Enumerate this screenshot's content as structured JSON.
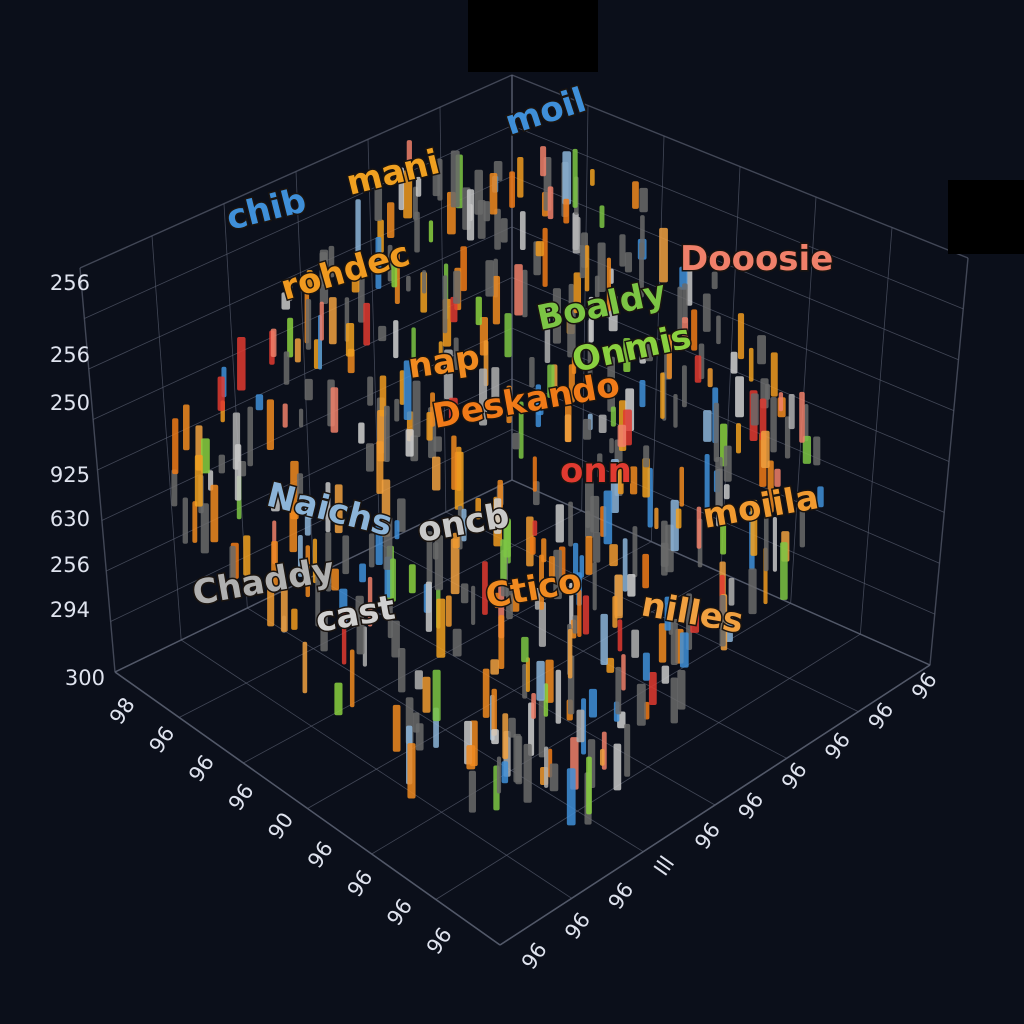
{
  "y_axis_labels": [
    "256",
    "256",
    "250",
    "925",
    "630",
    "256",
    "294",
    "300"
  ],
  "left_axis_labels": [
    "98",
    "96",
    "96",
    "96",
    "90",
    "96",
    "96",
    "96",
    "96"
  ],
  "right_axis_labels": [
    "96",
    "96",
    "96",
    "Ill",
    "96",
    "96",
    "96",
    "96",
    "96",
    "96"
  ],
  "words": [
    {
      "text": "moil",
      "color": "#3f8fd8"
    },
    {
      "text": "mani",
      "color": "#f0a020"
    },
    {
      "text": "chib",
      "color": "#3f8fd8"
    },
    {
      "text": "rohdec",
      "color": "#f09a20"
    },
    {
      "text": "Dooosie",
      "color": "#f0806a"
    },
    {
      "text": "Boaldy",
      "color": "#7cc544"
    },
    {
      "text": "Onmis",
      "color": "#8ad040"
    },
    {
      "text": "nap",
      "color": "#f08a20"
    },
    {
      "text": "Deskando",
      "color": "#f07a18"
    },
    {
      "text": "onn",
      "color": "#e03a30"
    },
    {
      "text": "moiila",
      "color": "#f09a30"
    },
    {
      "text": "oncb",
      "color": "#c8c8c8"
    },
    {
      "text": "Naichs",
      "color": "#8cb4d8"
    },
    {
      "text": "Ctico",
      "color": "#f08a20"
    },
    {
      "text": "nilles",
      "color": "#f0a040"
    },
    {
      "text": "Chaddy",
      "color": "#b0b0b0"
    },
    {
      "text": "cast",
      "color": "#d0d0d0"
    }
  ]
}
